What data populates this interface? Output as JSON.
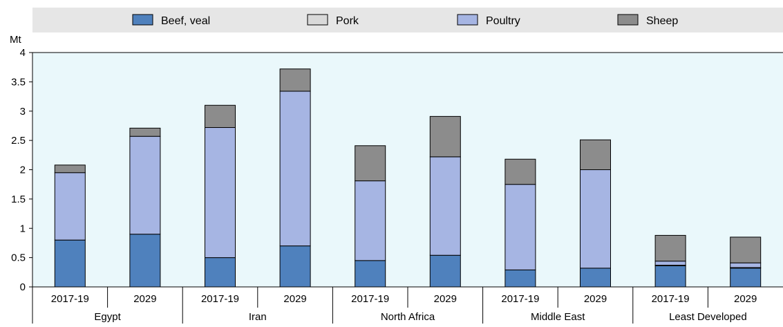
{
  "chart_data": {
    "type": "bar",
    "stacked": true,
    "ylabel": "Mt",
    "ylim": [
      0,
      4
    ],
    "yticks": [
      "0",
      "0.5",
      "1",
      "1.5",
      "2",
      "2.5",
      "3",
      "3.5",
      "4"
    ],
    "grid": false,
    "legend_position": "top",
    "groups": [
      "Egypt",
      "Iran",
      "North Africa",
      "Middle East",
      "Least Developed"
    ],
    "categories": [
      "2017-19",
      "2029",
      "2017-19",
      "2029",
      "2017-19",
      "2029",
      "2017-19",
      "2029",
      "2017-19",
      "2029"
    ],
    "series": [
      {
        "name": "Beef, veal",
        "color": "#4f81bd",
        "values": [
          0.8,
          0.9,
          0.5,
          0.7,
          0.45,
          0.54,
          0.29,
          0.32,
          0.36,
          0.32
        ]
      },
      {
        "name": "Pork",
        "color": "#d9d9d9",
        "values": [
          0,
          0,
          0,
          0,
          0,
          0,
          0,
          0,
          0.01,
          0.01
        ]
      },
      {
        "name": "Poultry",
        "color": "#a6b5e3",
        "values": [
          1.15,
          1.67,
          2.22,
          2.64,
          1.36,
          1.68,
          1.46,
          1.68,
          0.07,
          0.08
        ]
      },
      {
        "name": "Sheep",
        "color": "#8c8c8c",
        "values": [
          0.13,
          0.14,
          0.38,
          0.38,
          0.6,
          0.69,
          0.43,
          0.51,
          0.44,
          0.44
        ]
      }
    ],
    "colors": {
      "plot_background": "#eaf8fb",
      "legend_background": "#e6e6e6",
      "bar_outline": "#000000"
    }
  }
}
